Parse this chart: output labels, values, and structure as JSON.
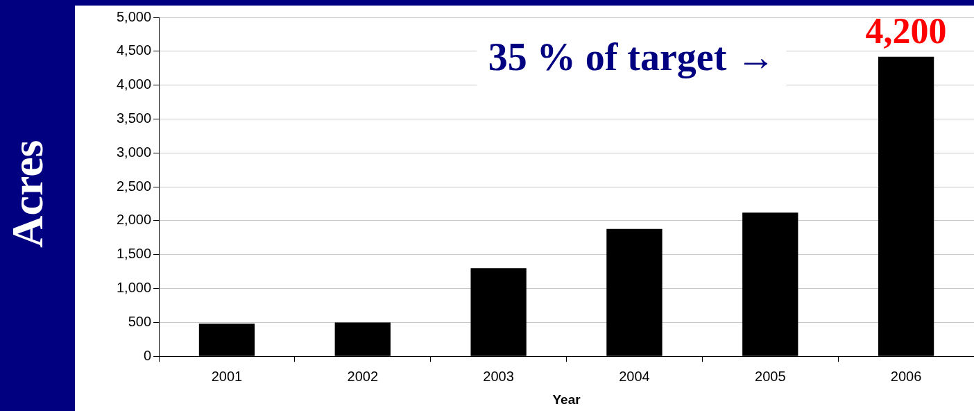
{
  "chart_data": {
    "type": "bar",
    "xlabel": "Year",
    "ylabel": "Acres",
    "categories": [
      "2001",
      "2002",
      "2003",
      "2004",
      "2005",
      "2006"
    ],
    "values": [
      480,
      500,
      1300,
      1880,
      2120,
      4420
    ],
    "color": "#000000",
    "ylim": [
      0,
      5000
    ],
    "yticks": [
      {
        "value": 0,
        "label": "0"
      },
      {
        "value": 500,
        "label": "500"
      },
      {
        "value": 1000,
        "label": "1,000"
      },
      {
        "value": 1500,
        "label": "1,500"
      },
      {
        "value": 2000,
        "label": "2,000"
      },
      {
        "value": 2500,
        "label": "2,500"
      },
      {
        "value": 3000,
        "label": "3,000"
      },
      {
        "value": 3500,
        "label": "3,500"
      },
      {
        "value": 4000,
        "label": "4,000"
      },
      {
        "value": 4500,
        "label": "4,500"
      },
      {
        "value": 5000,
        "label": "5,000"
      }
    ],
    "grid": "y",
    "legend": false,
    "annotations": [
      "35 % of target →",
      {
        "text": "4,200",
        "x": "2006",
        "y": 4420
      }
    ]
  }
}
